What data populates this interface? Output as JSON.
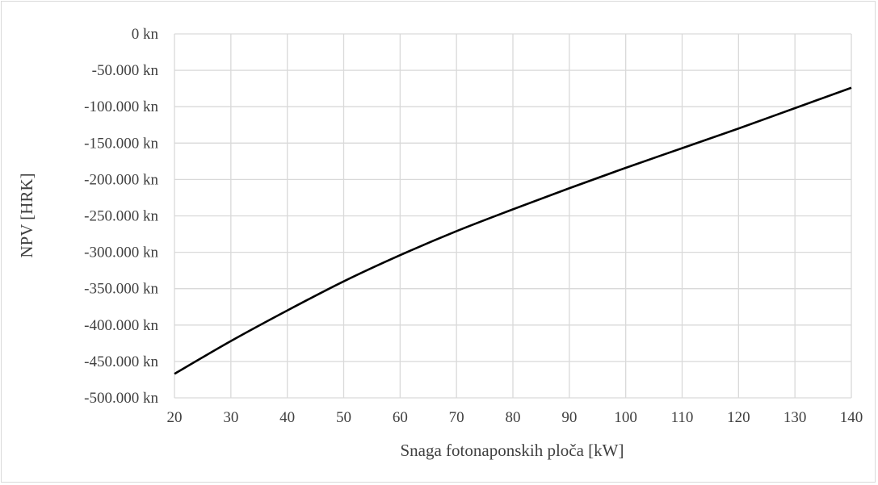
{
  "chart_data": {
    "type": "line",
    "title": "",
    "xlabel": "Snaga fotonaponskih ploča [kW]",
    "ylabel": "NPV [HRK]",
    "x_ticks": [
      20,
      30,
      40,
      50,
      60,
      70,
      80,
      90,
      100,
      110,
      120,
      130,
      140
    ],
    "y_ticks": [
      0,
      -50000,
      -100000,
      -150000,
      -200000,
      -250000,
      -300000,
      -350000,
      -400000,
      -450000,
      -500000
    ],
    "y_tick_labels": [
      "0 kn",
      "-50.000 kn",
      "-100.000 kn",
      "-150.000 kn",
      "-200.000 kn",
      "-250.000 kn",
      "-300.000 kn",
      "-350.000 kn",
      "-400.000 kn",
      "-450.000 kn",
      "-500.000 kn"
    ],
    "xlim": [
      20,
      140
    ],
    "ylim": [
      -500000,
      0
    ],
    "grid": true,
    "line_color": "#000000",
    "series": [
      {
        "x": [
          20,
          30,
          40,
          50,
          60,
          70,
          80,
          90,
          100,
          110,
          120,
          130,
          140
        ],
        "y": [
          -467000,
          -422000,
          -380000,
          -340000,
          -304000,
          -271000,
          -241000,
          -212000,
          -184000,
          -157000,
          -130000,
          -102000,
          -74000
        ]
      }
    ]
  }
}
